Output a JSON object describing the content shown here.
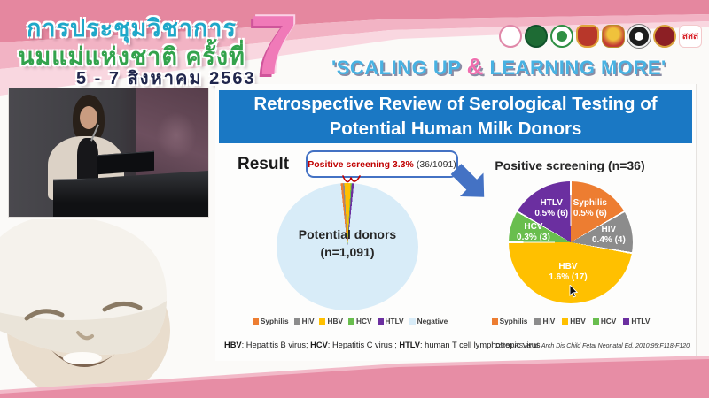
{
  "banner": {
    "title_line1": "การประชุมวิชาการ",
    "title_line2": "นมแม่แห่งชาติ ครั้งที่",
    "date": "5 - 7 สิงหาคม 2563",
    "edition": "7",
    "motto_pre": "'SCALING UP ",
    "motto_amp": "&",
    "motto_post": " LEARNING MORE'",
    "sss_text": "สสส",
    "logos": [
      "breastfeeding-foundation-logo",
      "department-of-health-logo",
      "ministry-of-public-health-logo",
      "royal-thai-college-logo",
      "royal-emblem-logo",
      "pediatrics-society-logo",
      "medical-association-logo",
      "thaihealth-sss-logo"
    ]
  },
  "slide": {
    "title": "Retrospective Review of Serological Testing of Potential Human Milk Donors",
    "result_label": "Result",
    "callout_highlight": "Positive screening 3.3%",
    "callout_detail": "(36/1091)",
    "footer_abbrev": [
      {
        "text": "HBV",
        "bold": true
      },
      {
        "text": ": Hepatitis B virus; ",
        "bold": false
      },
      {
        "text": "HCV",
        "bold": true
      },
      {
        "text": ": Hepatitis C virus ; ",
        "bold": false
      },
      {
        "text": "HTLV",
        "bold": true
      },
      {
        "text": ": human T cell lymphotropic virus",
        "bold": false
      }
    ],
    "citation": "Cohen RS, et al. Arch Dis Child Fetal Neonatal Ed. 2010;95:F118-F120."
  },
  "chart_data": [
    {
      "type": "pie",
      "name": "potential-donors",
      "center_label_line1": "Potential donors",
      "center_label_line2": "(n=1,091)",
      "n": 1091,
      "start_angle_deg": -6,
      "annotation": "Positive screening 3.3% (36/1091)",
      "slices": [
        {
          "label": "Syphilis",
          "value": 6,
          "percent": "0.5%",
          "color": "#ED7D31"
        },
        {
          "label": "HIV",
          "value": 4,
          "percent": "0.4%",
          "color": "#8C8C8C"
        },
        {
          "label": "HBV",
          "value": 17,
          "percent": "1.6%",
          "color": "#FFC000"
        },
        {
          "label": "HCV",
          "value": 3,
          "percent": "0.3%",
          "color": "#69BE4E"
        },
        {
          "label": "HTLV",
          "value": 6,
          "percent": "0.5%",
          "color": "#6B2FA0"
        },
        {
          "label": "Negative",
          "value": 1055,
          "percent": "96.7%",
          "color": "#D8ECF8"
        }
      ]
    },
    {
      "type": "pie",
      "name": "positive-screening",
      "title": "Positive screening (n=36)",
      "n": 36,
      "start_angle_deg": 0,
      "slice_gap_deg": 0.8,
      "slices": [
        {
          "label": "Syphilis",
          "value": 6,
          "pct_label": "0.5% (6)",
          "color": "#ED7D31"
        },
        {
          "label": "HIV",
          "value": 4,
          "pct_label": "0.4% (4)",
          "color": "#8C8C8C"
        },
        {
          "label": "HBV",
          "value": 17,
          "pct_label": "1.6% (17)",
          "color": "#FFC000"
        },
        {
          "label": "HCV",
          "value": 3,
          "pct_label": "0.3% (3)",
          "color": "#69BE4E"
        },
        {
          "label": "HTLV",
          "value": 6,
          "pct_label": "0.5% (6)",
          "color": "#6B2FA0"
        }
      ]
    }
  ],
  "colors": {
    "slide_title_bg": "#1A78C4",
    "callout_border": "#4472C4",
    "arrow_blue": "#4472C4",
    "highlight_red": "#C00000",
    "header_pink": "#E5879F",
    "bottom_pink": "#E78DA5",
    "motto_blue": "#48B2E2",
    "ampersand_pink": "#F06EAE",
    "edition_pink": "#F07AB8",
    "thai_title_teal": "#1FA8C9",
    "thai_subtitle_green": "#33A34D",
    "thai_date_navy": "#20264C",
    "negative_pale_blue": "#D8ECF8"
  }
}
